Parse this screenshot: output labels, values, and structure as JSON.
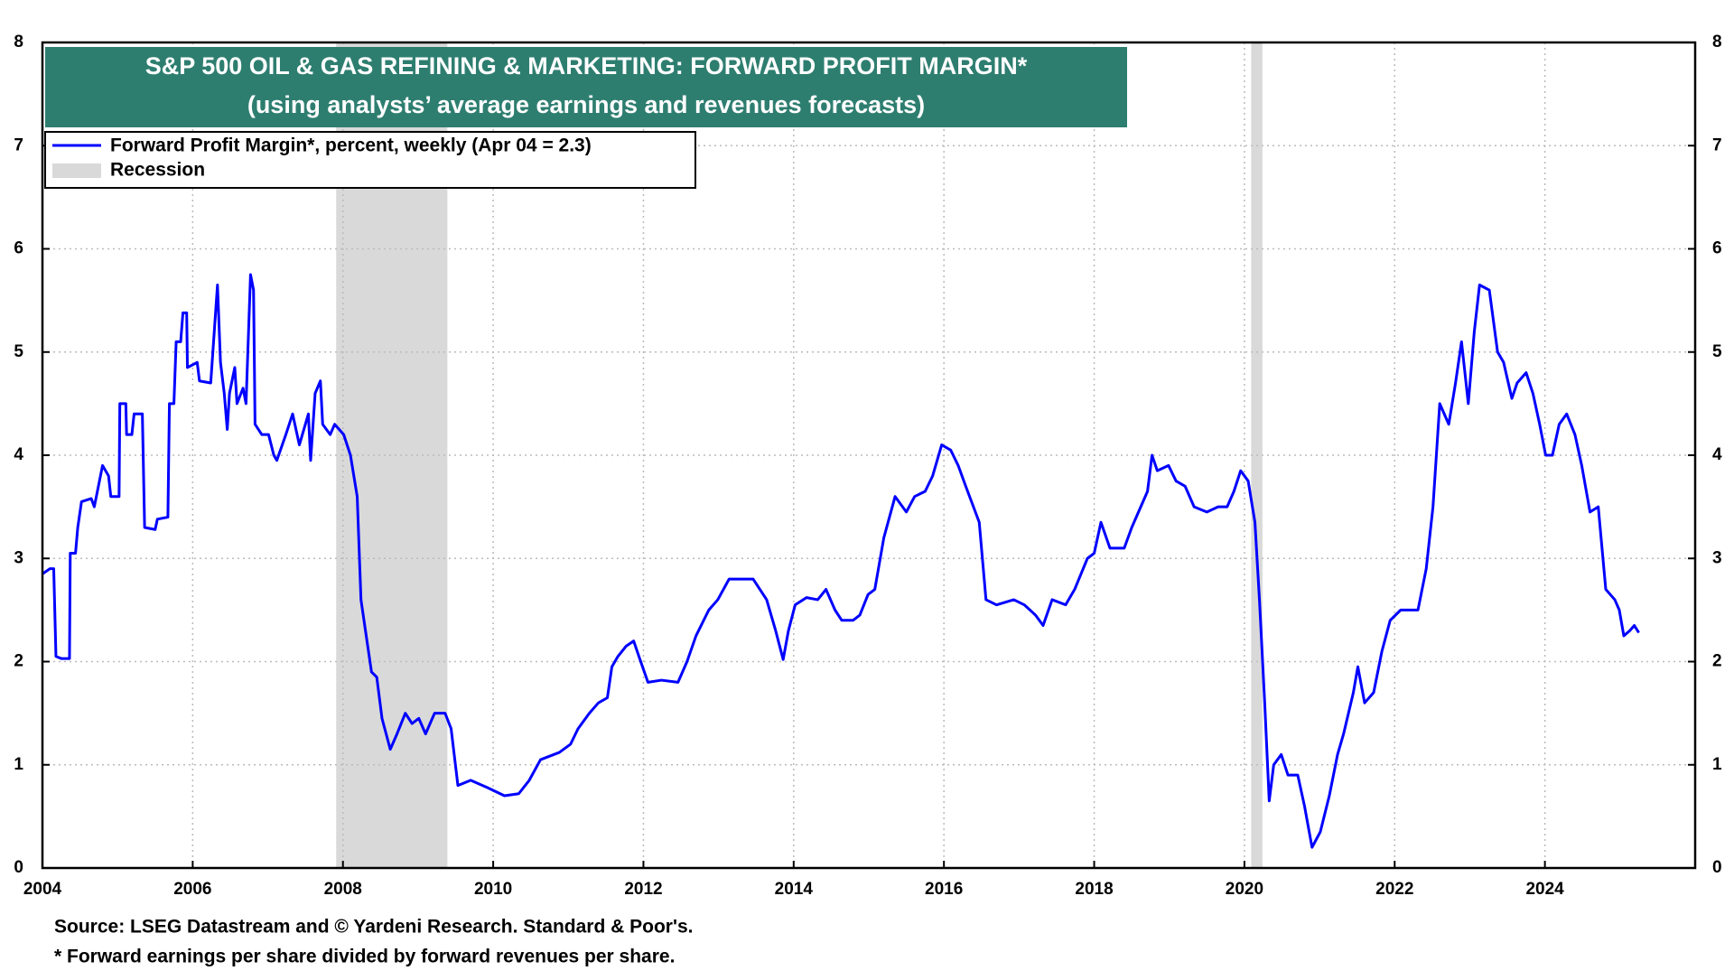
{
  "chart_data": {
    "type": "line",
    "title": "S&P 500 OIL & GAS REFINING & MARKETING: FORWARD PROFIT MARGIN*",
    "subtitle": "(using analysts’ average earnings and revenues forecasts)",
    "source": "Source: LSEG Datastream and © Yardeni Research. Standard & Poor's.",
    "note": "* Forward earnings per share divided by forward revenues per share.",
    "xlim": [
      2004,
      2026
    ],
    "xticks": [
      2004,
      2006,
      2008,
      2010,
      2012,
      2014,
      2016,
      2018,
      2020,
      2022,
      2024
    ],
    "ylim": [
      0,
      8
    ],
    "yticks": [
      0,
      1,
      2,
      3,
      4,
      5,
      6,
      7,
      8
    ],
    "grid": true,
    "legend": "top-left",
    "recession": {
      "name": "Recession",
      "color": "#d9d9d9",
      "periods": [
        [
          2007.91,
          2009.39
        ],
        [
          2020.09,
          2020.24
        ]
      ]
    },
    "series": [
      {
        "name": "Forward Profit Margin*, percent, weekly (Apr 04 = 2.3)",
        "color": "#0000ff",
        "x": [
          2004.0,
          2004.1,
          2004.15,
          2004.18,
          2004.25,
          2004.36,
          2004.37,
          2004.44,
          2004.47,
          2004.52,
          2004.65,
          2004.69,
          2004.8,
          2004.88,
          2004.91,
          2005.02,
          2005.03,
          2005.11,
          2005.12,
          2005.19,
          2005.22,
          2005.33,
          2005.36,
          2005.5,
          2005.53,
          2005.67,
          2005.69,
          2005.75,
          2005.78,
          2005.84,
          2005.87,
          2005.92,
          2005.93,
          2006.06,
          2006.09,
          2006.24,
          2006.33,
          2006.37,
          2006.42,
          2006.46,
          2006.49,
          2006.56,
          2006.59,
          2006.67,
          2006.71,
          2006.77,
          2006.81,
          2006.83,
          2006.92,
          2007.01,
          2007.08,
          2007.12,
          2007.24,
          2007.33,
          2007.42,
          2007.54,
          2007.57,
          2007.63,
          2007.7,
          2007.73,
          2007.83,
          2007.89,
          2008.01,
          2008.1,
          2008.19,
          2008.24,
          2008.3,
          2008.38,
          2008.45,
          2008.52,
          2008.63,
          2008.72,
          2008.83,
          2008.92,
          2009.01,
          2009.1,
          2009.22,
          2009.36,
          2009.44,
          2009.53,
          2009.7,
          2009.92,
          2010.15,
          2010.34,
          2010.48,
          2010.63,
          2010.88,
          2011.03,
          2011.13,
          2011.28,
          2011.4,
          2011.52,
          2011.58,
          2011.66,
          2011.77,
          2011.87,
          2011.94,
          2012.06,
          2012.24,
          2012.46,
          2012.58,
          2012.7,
          2012.87,
          2012.99,
          2013.14,
          2013.46,
          2013.64,
          2013.76,
          2013.86,
          2013.93,
          2014.02,
          2014.17,
          2014.32,
          2014.43,
          2014.55,
          2014.64,
          2014.79,
          2014.88,
          2014.99,
          2015.08,
          2015.2,
          2015.35,
          2015.5,
          2015.61,
          2015.75,
          2015.85,
          2015.97,
          2016.09,
          2016.19,
          2016.29,
          2016.47,
          2016.56,
          2016.7,
          2016.93,
          2017.07,
          2017.22,
          2017.32,
          2017.44,
          2017.62,
          2017.74,
          2017.91,
          2018.0,
          2018.09,
          2018.21,
          2018.4,
          2018.5,
          2018.62,
          2018.71,
          2018.77,
          2018.84,
          2018.99,
          2019.09,
          2019.21,
          2019.33,
          2019.5,
          2019.65,
          2019.77,
          2019.86,
          2019.95,
          2020.05,
          2020.14,
          2020.2,
          2020.27,
          2020.33,
          2020.39,
          2020.49,
          2020.58,
          2020.71,
          2020.8,
          2020.9,
          2021.01,
          2021.13,
          2021.24,
          2021.32,
          2021.45,
          2021.51,
          2021.6,
          2021.72,
          2021.83,
          2021.94,
          2022.08,
          2022.31,
          2022.42,
          2022.51,
          2022.6,
          2022.72,
          2022.81,
          2022.89,
          2022.98,
          2023.06,
          2023.13,
          2023.26,
          2023.37,
          2023.45,
          2023.56,
          2023.63,
          2023.75,
          2023.84,
          2023.93,
          2024.01,
          2024.1,
          2024.19,
          2024.29,
          2024.4,
          2024.49,
          2024.6,
          2024.71,
          2024.81,
          2024.93,
          2024.99,
          2025.05,
          2025.13,
          2025.19,
          2025.25
        ],
        "values": [
          2.85,
          2.9,
          2.9,
          2.05,
          2.03,
          2.03,
          3.05,
          3.05,
          3.3,
          3.55,
          3.58,
          3.5,
          3.9,
          3.8,
          3.6,
          3.6,
          4.5,
          4.5,
          4.2,
          4.2,
          4.4,
          4.4,
          3.3,
          3.28,
          3.38,
          3.4,
          4.5,
          4.5,
          5.1,
          5.1,
          5.38,
          5.38,
          4.85,
          4.9,
          4.72,
          4.7,
          5.65,
          4.9,
          4.6,
          4.25,
          4.6,
          4.85,
          4.5,
          4.65,
          4.5,
          5.75,
          5.6,
          4.3,
          4.2,
          4.2,
          4.0,
          3.95,
          4.2,
          4.4,
          4.1,
          4.4,
          3.95,
          4.6,
          4.72,
          4.3,
          4.2,
          4.3,
          4.2,
          4.0,
          3.6,
          2.6,
          2.3,
          1.9,
          1.85,
          1.45,
          1.15,
          1.3,
          1.5,
          1.4,
          1.45,
          1.3,
          1.5,
          1.5,
          1.35,
          0.8,
          0.85,
          0.78,
          0.7,
          0.72,
          0.85,
          1.05,
          1.12,
          1.2,
          1.35,
          1.5,
          1.6,
          1.65,
          1.95,
          2.05,
          2.15,
          2.2,
          2.05,
          1.8,
          1.82,
          1.8,
          2.0,
          2.25,
          2.5,
          2.6,
          2.8,
          2.8,
          2.6,
          2.3,
          2.02,
          2.3,
          2.55,
          2.62,
          2.6,
          2.7,
          2.5,
          2.4,
          2.4,
          2.45,
          2.65,
          2.7,
          3.2,
          3.6,
          3.45,
          3.6,
          3.65,
          3.8,
          4.1,
          4.05,
          3.9,
          3.7,
          3.35,
          2.6,
          2.55,
          2.6,
          2.55,
          2.45,
          2.35,
          2.6,
          2.55,
          2.7,
          3.0,
          3.05,
          3.35,
          3.1,
          3.1,
          3.3,
          3.5,
          3.65,
          4.0,
          3.85,
          3.9,
          3.75,
          3.7,
          3.5,
          3.45,
          3.5,
          3.5,
          3.65,
          3.85,
          3.75,
          3.35,
          2.6,
          1.6,
          0.65,
          1.0,
          1.1,
          0.9,
          0.9,
          0.6,
          0.2,
          0.35,
          0.7,
          1.1,
          1.3,
          1.7,
          1.95,
          1.6,
          1.7,
          2.1,
          2.4,
          2.5,
          2.5,
          2.9,
          3.5,
          4.5,
          4.3,
          4.7,
          5.1,
          4.5,
          5.2,
          5.65,
          5.6,
          5.0,
          4.9,
          4.55,
          4.7,
          4.8,
          4.6,
          4.3,
          4.0,
          4.0,
          4.3,
          4.4,
          4.2,
          3.9,
          3.45,
          3.5,
          2.7,
          2.6,
          2.5,
          2.25,
          2.3,
          2.35,
          2.28
        ]
      }
    ]
  }
}
